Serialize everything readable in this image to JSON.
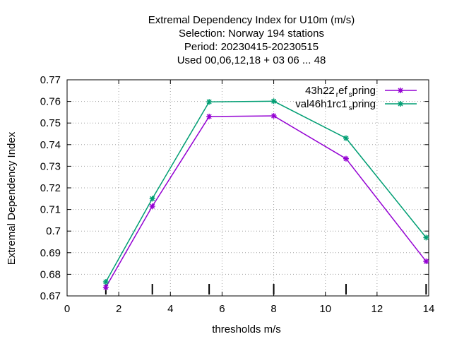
{
  "chart_data": {
    "type": "line",
    "title_lines": [
      "Extremal Dependency Index  for U10m (m/s)",
      "Selection: Norway    194 stations",
      "Period: 20230415-20230515",
      "Used  00,06,12,18  + 03 06 ... 48"
    ],
    "xlabel": "thresholds m/s",
    "ylabel": "Extremal Dependency Index",
    "xlim": [
      0,
      14
    ],
    "ylim": [
      0.67,
      0.77
    ],
    "xticks": [
      0,
      2,
      4,
      6,
      8,
      10,
      12,
      14
    ],
    "yticks": [
      0.67,
      0.68,
      0.69,
      0.7,
      0.71,
      0.72,
      0.73,
      0.74,
      0.75,
      0.76,
      0.77
    ],
    "ytick_labels": [
      "0.67",
      "0.68",
      "0.69",
      "0.7",
      "0.71",
      "0.72",
      "0.73",
      "0.74",
      "0.75",
      "0.76",
      "0.77"
    ],
    "grid": true,
    "legend_position": "top-right",
    "threshold_markers": [
      1.5,
      3.3,
      5.5,
      8.0,
      10.8,
      13.9
    ],
    "series": [
      {
        "name": "43h22_ref_spring",
        "legend_main": "43h22",
        "legend_sub1": "r",
        "legend_mid": "ef",
        "legend_sub2": "s",
        "legend_tail": "pring",
        "color": "#9400d3",
        "x": [
          1.5,
          3.3,
          5.5,
          8.0,
          10.8,
          13.9
        ],
        "y": [
          0.674,
          0.7115,
          0.753,
          0.7533,
          0.7335,
          0.686
        ]
      },
      {
        "name": "val46h1rc1_spring",
        "legend_main": "val46h1rc1",
        "legend_sub1": "s",
        "legend_tail": "pring",
        "color": "#009e73",
        "x": [
          1.5,
          3.3,
          5.5,
          8.0,
          10.8,
          13.9
        ],
        "y": [
          0.6765,
          0.715,
          0.7598,
          0.7601,
          0.743,
          0.697
        ]
      }
    ]
  }
}
